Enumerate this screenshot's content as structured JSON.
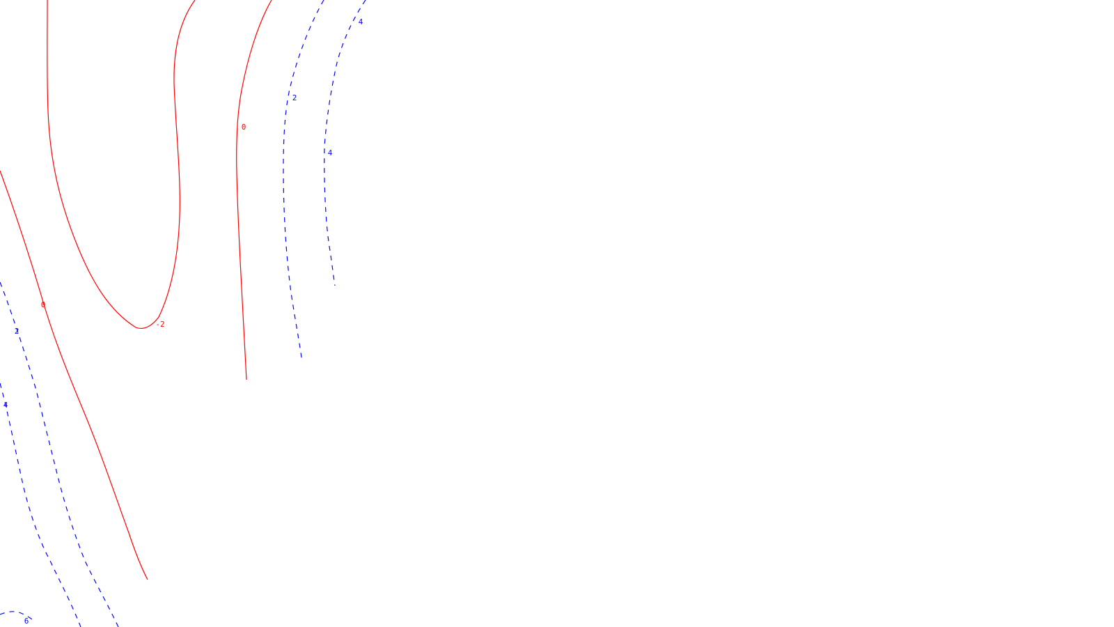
{
  "chart_data": {
    "type": "contour",
    "title": "",
    "xlabel": "",
    "ylabel": "",
    "grid": false,
    "legend": "none",
    "colors": {
      "negative_and_zero": "#ff0000",
      "positive": "#0000ff",
      "background": "#ffffff"
    },
    "line_styles": {
      "negative_and_zero": "solid",
      "positive": "dashed"
    },
    "levels": [
      {
        "value": -2,
        "label": "-2",
        "style": "solid",
        "color": "#ff0000"
      },
      {
        "value": 0,
        "label": "0",
        "style": "solid",
        "color": "#ff0000"
      },
      {
        "value": 2,
        "label": "2",
        "style": "dashed",
        "color": "#0000ff"
      },
      {
        "value": 4,
        "label": "4",
        "style": "dashed",
        "color": "#0000ff"
      },
      {
        "value": 6,
        "label": "6",
        "style": "dashed",
        "color": "#0000ff"
      }
    ]
  }
}
